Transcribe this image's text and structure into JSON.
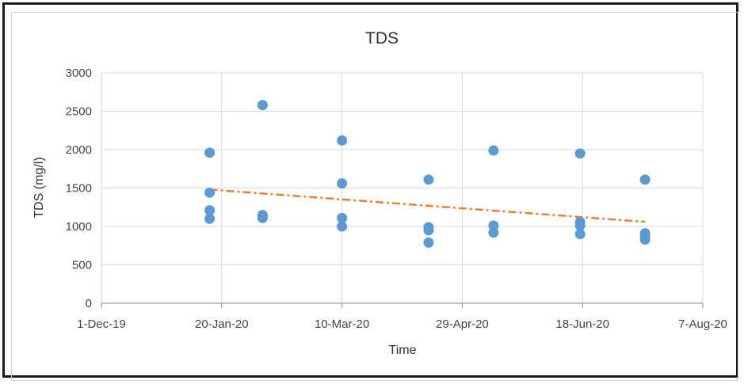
{
  "chart_data": {
    "type": "scatter",
    "title": "TDS",
    "xlabel": "Time",
    "ylabel": "TDS (mg/l)",
    "x_ticks": [
      "1-Dec-19",
      "20-Jan-20",
      "10-Mar-20",
      "29-Apr-20",
      "18-Jun-20",
      "7-Aug-20"
    ],
    "xlim": [
      "2019-12-01",
      "2020-08-07"
    ],
    "y_ticks": [
      "0",
      "500",
      "1000",
      "1500",
      "2000",
      "2500",
      "3000"
    ],
    "ylim": [
      0,
      3000
    ],
    "grid": true,
    "legend": "none",
    "series": [
      {
        "marker_color": "#5b9bd5",
        "points": [
          {
            "x": "2020-01-15",
            "y": 1960
          },
          {
            "x": "2020-01-15",
            "y": 1440
          },
          {
            "x": "2020-01-15",
            "y": 1210
          },
          {
            "x": "2020-01-15",
            "y": 1100
          },
          {
            "x": "2020-02-06",
            "y": 2580
          },
          {
            "x": "2020-02-06",
            "y": 1150
          },
          {
            "x": "2020-02-06",
            "y": 1110
          },
          {
            "x": "2020-03-10",
            "y": 2120
          },
          {
            "x": "2020-03-10",
            "y": 1560
          },
          {
            "x": "2020-03-10",
            "y": 1110
          },
          {
            "x": "2020-03-10",
            "y": 1000
          },
          {
            "x": "2020-04-15",
            "y": 1610
          },
          {
            "x": "2020-04-15",
            "y": 990
          },
          {
            "x": "2020-04-15",
            "y": 950
          },
          {
            "x": "2020-04-15",
            "y": 790
          },
          {
            "x": "2020-05-12",
            "y": 1990
          },
          {
            "x": "2020-05-12",
            "y": 1010
          },
          {
            "x": "2020-05-12",
            "y": 920
          },
          {
            "x": "2020-06-17",
            "y": 1950
          },
          {
            "x": "2020-06-17",
            "y": 1060
          },
          {
            "x": "2020-06-17",
            "y": 1010
          },
          {
            "x": "2020-06-17",
            "y": 900
          },
          {
            "x": "2020-07-14",
            "y": 1610
          },
          {
            "x": "2020-07-14",
            "y": 910
          },
          {
            "x": "2020-07-14",
            "y": 880
          },
          {
            "x": "2020-07-14",
            "y": 830
          }
        ]
      }
    ],
    "trendline": {
      "type": "linear",
      "color": "#ed7d31",
      "from": {
        "x": "2020-01-15",
        "y": 1480
      },
      "to": {
        "x": "2020-07-14",
        "y": 1060
      }
    }
  }
}
